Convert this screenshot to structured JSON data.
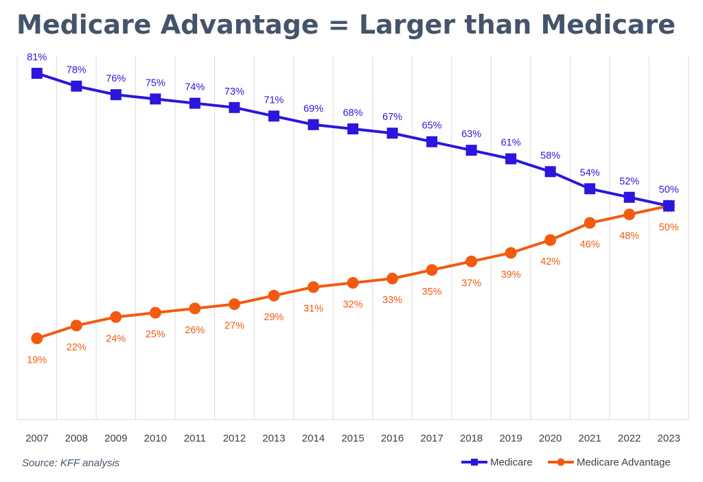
{
  "header": {
    "title": "Medicare Advantage = Larger than Medicare"
  },
  "footer": {
    "source": "Source: KFF analysis"
  },
  "colors": {
    "medicare": "#2b16dc",
    "medicare_advantage": "#f25a10",
    "grid": "#d9d9d9",
    "axis_text": "#404040"
  },
  "chart_data": {
    "type": "line",
    "title": "Medicare Advantage = Larger than Medicare",
    "xlabel": "",
    "ylabel": "",
    "ylim": [
      0,
      85
    ],
    "grid": "vertical",
    "legend_position": "bottom-right",
    "categories": [
      "2007",
      "2008",
      "2009",
      "2010",
      "2011",
      "2012",
      "2013",
      "2014",
      "2015",
      "2016",
      "2017",
      "2018",
      "2019",
      "2020",
      "2021",
      "2022",
      "2023"
    ],
    "series": [
      {
        "name": "Medicare",
        "marker": "square",
        "color": "#2b16dc",
        "label_position": "above",
        "values": [
          81,
          78,
          76,
          75,
          74,
          73,
          71,
          69,
          68,
          67,
          65,
          63,
          61,
          58,
          54,
          52,
          50
        ],
        "labels": [
          "81%",
          "78%",
          "76%",
          "75%",
          "74%",
          "73%",
          "71%",
          "69%",
          "68%",
          "67%",
          "65%",
          "63%",
          "61%",
          "58%",
          "54%",
          "52%",
          "50%"
        ]
      },
      {
        "name": "Medicare Advantage",
        "marker": "circle",
        "color": "#f25a10",
        "label_position": "below",
        "values": [
          19,
          22,
          24,
          25,
          26,
          27,
          29,
          31,
          32,
          33,
          35,
          37,
          39,
          42,
          46,
          48,
          50
        ],
        "labels": [
          "19%",
          "22%",
          "24%",
          "25%",
          "26%",
          "27%",
          "29%",
          "31%",
          "32%",
          "33%",
          "35%",
          "37%",
          "39%",
          "42%",
          "46%",
          "48%",
          "50%"
        ]
      }
    ]
  }
}
